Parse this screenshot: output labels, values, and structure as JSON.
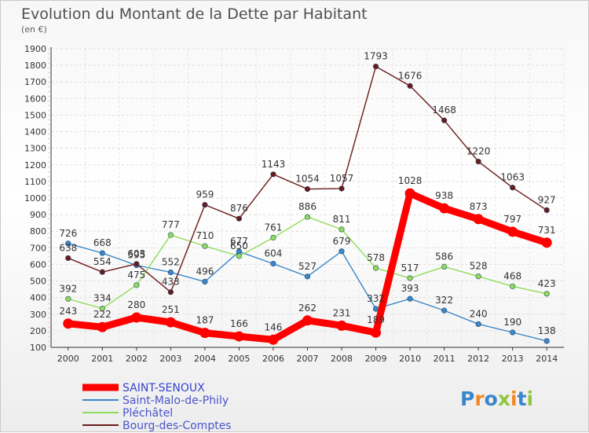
{
  "chart_data": {
    "type": "line",
    "title": "Evolution du Montant de la Dette par Habitant",
    "subtitle": "(en €)",
    "x": [
      "2000",
      "2001",
      "2002",
      "2003",
      "2004",
      "2005",
      "2006",
      "2007",
      "2008",
      "2009",
      "2010",
      "2011",
      "2012",
      "2013",
      "2014"
    ],
    "ylim": [
      100,
      1900
    ],
    "yticks": [
      100,
      200,
      300,
      400,
      500,
      600,
      700,
      800,
      900,
      1000,
      1100,
      1200,
      1300,
      1400,
      1500,
      1600,
      1700,
      1800,
      1900
    ],
    "grid": true,
    "legend_position": "bottom-left",
    "series": [
      {
        "name": "SAINT-SENOUX",
        "color": "#ff0000",
        "values": [
          243,
          222,
          280,
          251,
          187,
          166,
          146,
          262,
          231,
          189,
          1028,
          938,
          873,
          797,
          731
        ]
      },
      {
        "name": "Saint-Malo-de-Phily",
        "color": "#3a86c8",
        "values": [
          726,
          668,
          595,
          552,
          496,
          677,
          604,
          527,
          679,
          332,
          393,
          322,
          240,
          190,
          138
        ]
      },
      {
        "name": "Pléchâtel",
        "color": "#8fdc5a",
        "values": [
          392,
          334,
          475,
          777,
          710,
          650,
          761,
          886,
          811,
          578,
          517,
          586,
          528,
          468,
          423
        ]
      },
      {
        "name": "Bourg-des-Comptes",
        "color": "#6b1a1a",
        "values": [
          638,
          554,
          603,
          433,
          959,
          876,
          1143,
          1054,
          1057,
          1793,
          1676,
          1468,
          1220,
          1063,
          927
        ]
      }
    ]
  },
  "branding": {
    "text": "Proxiti",
    "colors": [
      "#3a86c8",
      "#f08a24",
      "#3a86c8",
      "#8fc63f",
      "#f08a24",
      "#3a86c8",
      "#8fc63f"
    ]
  }
}
